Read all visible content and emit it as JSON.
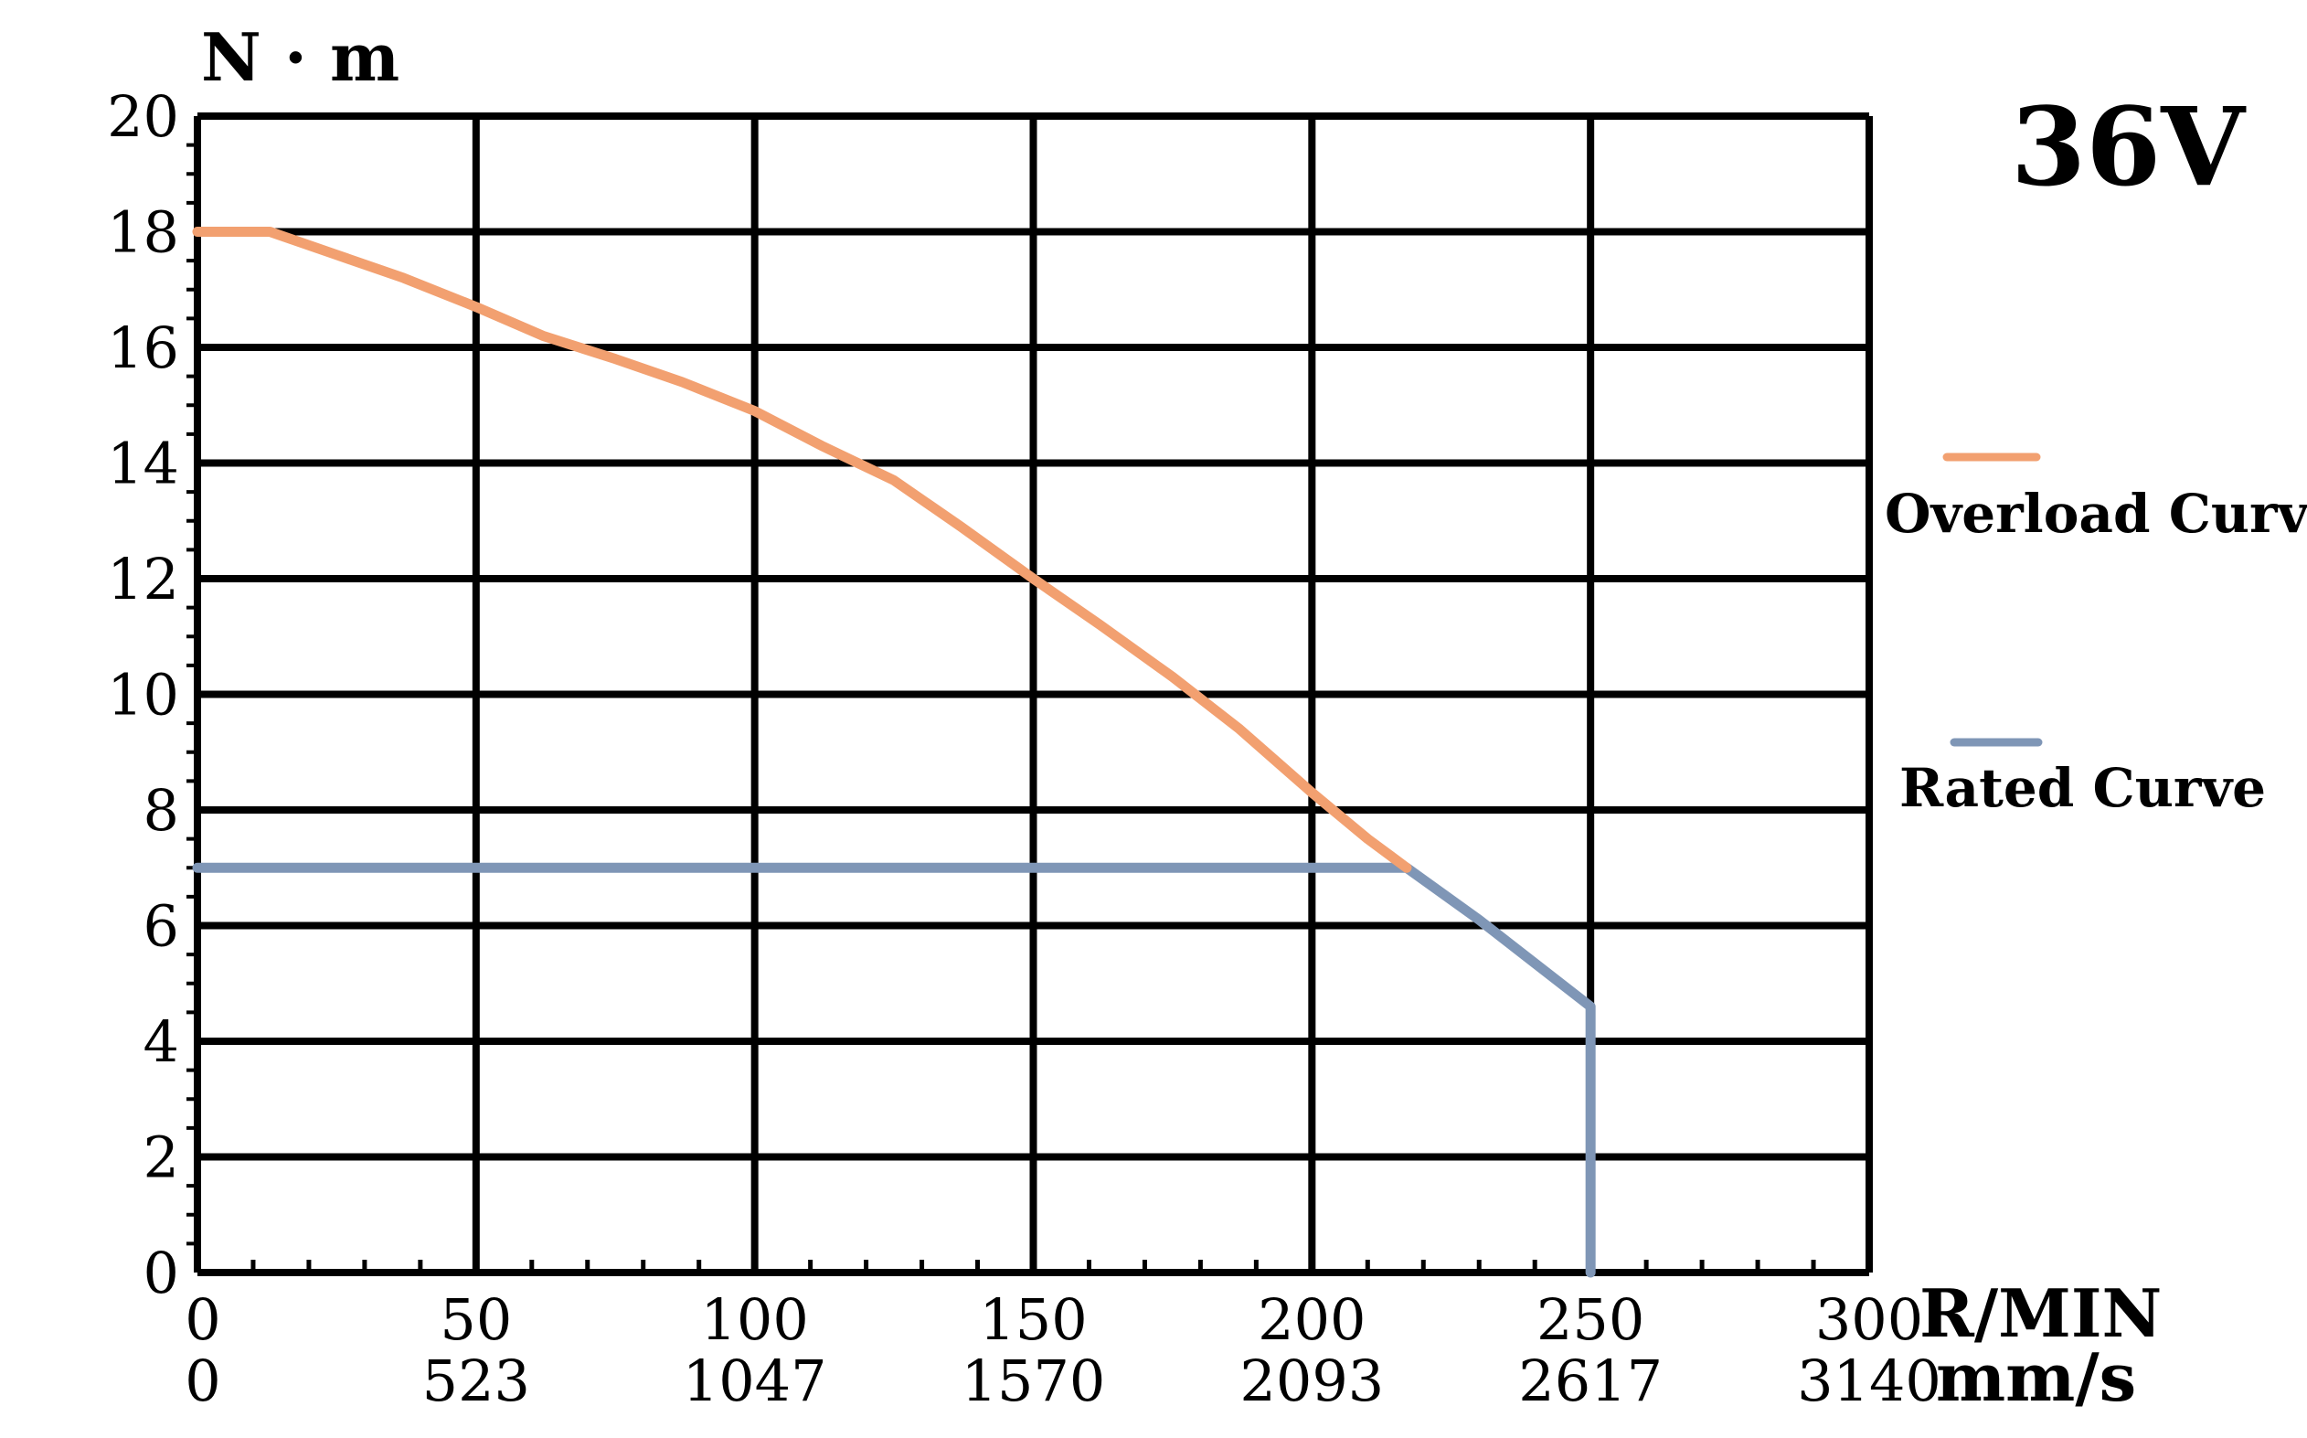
{
  "chart_data": {
    "type": "line",
    "title": "36V",
    "ylabel": "N · m",
    "xlabel": "R/MIN",
    "xlabel_secondary": "mm/s",
    "xlim": [
      0,
      300
    ],
    "ylim": [
      0,
      20
    ],
    "x_ticks": [
      0,
      50,
      100,
      150,
      200,
      250,
      300
    ],
    "x_tick_labels": [
      "0",
      "50",
      "100",
      "150",
      "200",
      "250",
      "300"
    ],
    "x_tick_labels_secondary": [
      "0",
      "523",
      "1047",
      "1570",
      "2093",
      "2617",
      "3140"
    ],
    "y_ticks": [
      0,
      2,
      4,
      6,
      8,
      10,
      12,
      14,
      16,
      18,
      20
    ],
    "y_tick_labels": [
      "0",
      "2",
      "4",
      "6",
      "8",
      "10",
      "12",
      "14",
      "16",
      "18",
      "20"
    ],
    "grid": true,
    "legend_position": "right",
    "series": [
      {
        "name": "Overload Curve",
        "color": "#f2a070",
        "x": [
          0,
          13,
          25,
          37,
          50,
          62,
          75,
          87,
          100,
          112,
          125,
          137,
          150,
          162,
          175,
          187,
          200,
          210,
          217
        ],
        "y": [
          18,
          18,
          17.6,
          17.2,
          16.7,
          16.2,
          15.8,
          15.4,
          14.9,
          14.3,
          13.7,
          12.9,
          12.0,
          11.2,
          10.3,
          9.4,
          8.3,
          7.5,
          7.0
        ]
      },
      {
        "name": "Rated Curve",
        "color": "#7f96b6",
        "x": [
          0,
          217,
          230,
          250,
          250
        ],
        "y": [
          7.0,
          7.0,
          6.1,
          4.6,
          0
        ]
      }
    ]
  }
}
